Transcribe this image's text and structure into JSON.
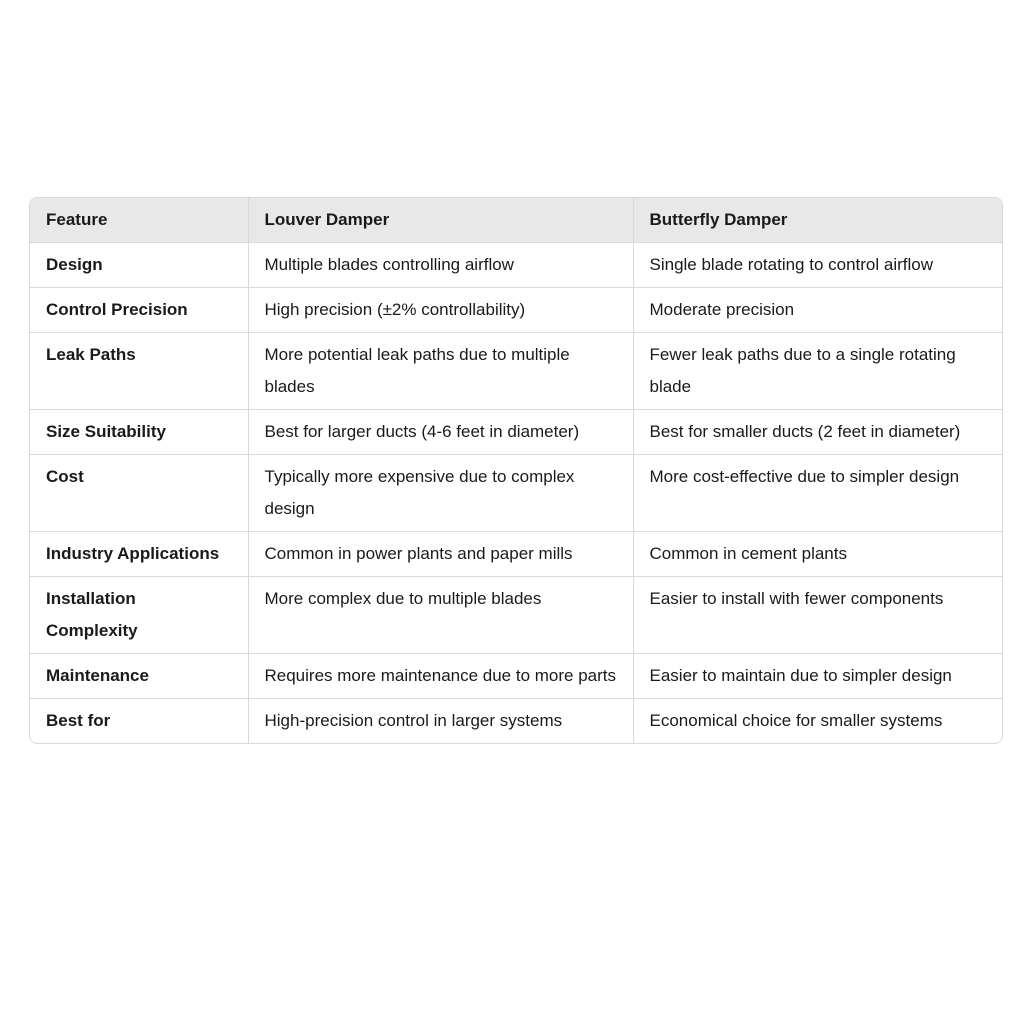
{
  "table": {
    "headers": [
      "Feature",
      "Louver Damper",
      "Butterfly Damper"
    ],
    "rows": [
      [
        "Design",
        "Multiple blades controlling airflow",
        "Single blade rotating to control airflow"
      ],
      [
        "Control Precision",
        "High precision (±2% controllability)",
        "Moderate precision"
      ],
      [
        "Leak Paths",
        "More potential leak paths due to multiple blades",
        "Fewer leak paths due to a single rotating blade"
      ],
      [
        "Size Suitability",
        "Best for larger ducts (4-6 feet in diameter)",
        "Best for smaller ducts (2 feet in diameter)"
      ],
      [
        "Cost",
        "Typically more expensive due to complex design",
        "More cost-effective due to simpler design"
      ],
      [
        "Industry Applications",
        "Common in power plants and paper mills",
        "Common in cement plants"
      ],
      [
        "Installation Complexity",
        "More complex due to multiple blades",
        "Easier to install with fewer components"
      ],
      [
        "Maintenance",
        "Requires more maintenance due to more parts",
        "Easier to maintain due to simpler design"
      ],
      [
        "Best for",
        "High-precision control in larger systems",
        "Economical choice for smaller systems"
      ]
    ]
  }
}
